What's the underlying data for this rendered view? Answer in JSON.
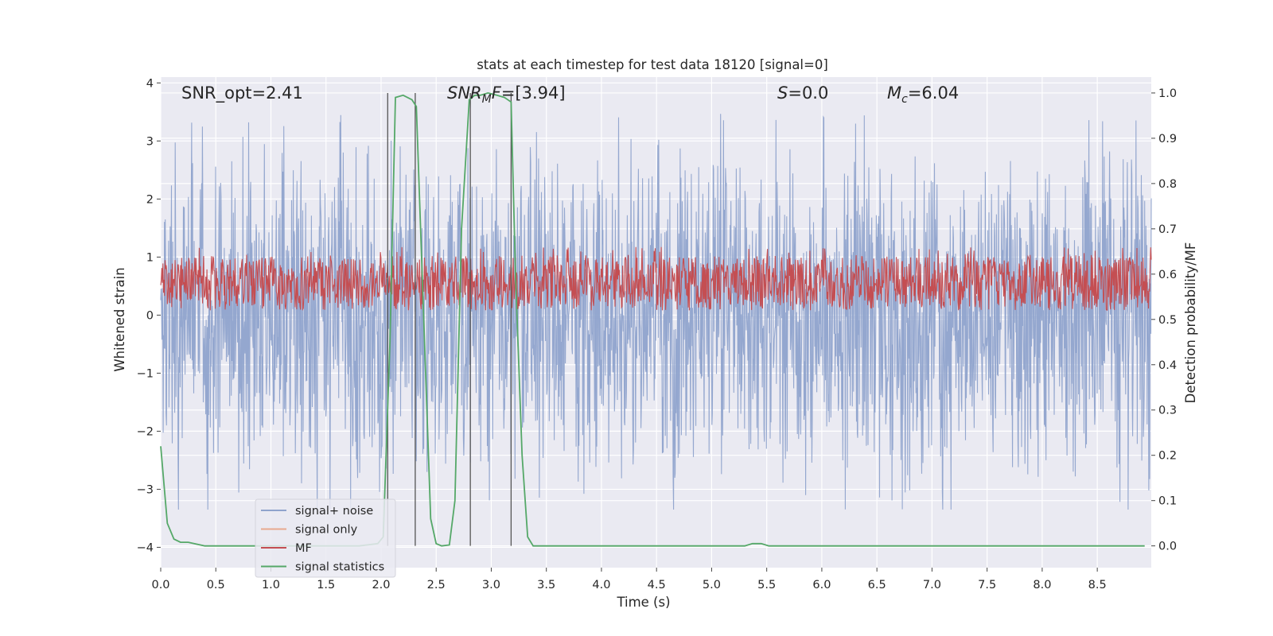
{
  "chart_data": {
    "type": "line",
    "title": "stats at each timestep for test data 18120 [signal=0]",
    "xlabel": "Time (s)",
    "ylabel": "Whitened strain",
    "ylabel_right": "Detection probability/MF",
    "xlim": [
      0.0,
      8.99
    ],
    "ylim": [
      -4.35,
      4.1
    ],
    "ylim_right": [
      -0.048,
      1.035
    ],
    "x_ticks": [
      "0.0",
      "0.5",
      "1.0",
      "1.5",
      "2.0",
      "2.5",
      "3.0",
      "3.5",
      "4.0",
      "4.5",
      "5.0",
      "5.5",
      "6.0",
      "6.5",
      "7.0",
      "7.5",
      "8.0",
      "8.5"
    ],
    "x_tick_values": [
      0.0,
      0.5,
      1.0,
      1.5,
      2.0,
      2.5,
      3.0,
      3.5,
      4.0,
      4.5,
      5.0,
      5.5,
      6.0,
      6.5,
      7.0,
      7.5,
      8.0,
      8.5
    ],
    "y_ticks": [
      "4",
      "3",
      "2",
      "1",
      "0",
      "−1",
      "−2",
      "−3",
      "−4"
    ],
    "y_tick_values": [
      4,
      3,
      2,
      1,
      0,
      -1,
      -2,
      -3,
      -4
    ],
    "y_right_ticks": [
      "1.0",
      "0.9",
      "0.8",
      "0.7",
      "0.6",
      "0.5",
      "0.4",
      "0.3",
      "0.2",
      "0.1",
      "0.0"
    ],
    "y_right_tick_values": [
      1.0,
      0.9,
      0.8,
      0.7,
      0.6,
      0.5,
      0.4,
      0.3,
      0.2,
      0.1,
      0.0
    ],
    "grid": true,
    "legend_position": "lower-left",
    "annotations": [
      {
        "prefix": "SNR_opt=2.41",
        "sub": "",
        "suffix": ""
      },
      {
        "prefix": "SNR",
        "sub": "M",
        "suffix": "F=[3.94]"
      },
      {
        "prefix": "S",
        "sub": "",
        "suffix": "=0.0"
      },
      {
        "prefix": "M",
        "sub": "c",
        "suffix": "=6.04"
      }
    ],
    "series": [
      {
        "name": "signal+ noise",
        "color": "#8fa3cc",
        "axis": "left",
        "style": "noise",
        "amplitude_range": [
          -3.35,
          3.6
        ]
      },
      {
        "name": "signal only",
        "color": "#e8a98f",
        "axis": "left",
        "values": []
      },
      {
        "name": "MF",
        "color": "#c44e52",
        "axis": "right",
        "style": "band",
        "range": [
          0.52,
          0.64
        ]
      },
      {
        "name": "signal statistics",
        "color": "#55a868",
        "axis": "right",
        "x": [
          0.0,
          0.06,
          0.12,
          0.18,
          0.25,
          0.4,
          0.6,
          0.9,
          1.2,
          1.5,
          1.8,
          1.97,
          2.02,
          2.08,
          2.13,
          2.2,
          2.28,
          2.32,
          2.38,
          2.45,
          2.5,
          2.55,
          2.62,
          2.67,
          2.73,
          2.8,
          2.85,
          2.9,
          2.97,
          3.05,
          3.12,
          3.18,
          3.22,
          3.28,
          3.33,
          3.38,
          3.45,
          3.6,
          4.0,
          5.0,
          5.3,
          5.37,
          5.45,
          5.52,
          5.6,
          6.0,
          7.0,
          8.0,
          8.93
        ],
        "values": [
          0.22,
          0.05,
          0.015,
          0.008,
          0.008,
          0.0,
          0.0,
          0.0,
          0.0,
          0.0,
          0.0,
          0.005,
          0.02,
          0.45,
          0.99,
          0.995,
          0.985,
          0.97,
          0.55,
          0.06,
          0.005,
          0.0,
          0.002,
          0.1,
          0.7,
          0.985,
          0.995,
          0.995,
          1.0,
          0.995,
          0.99,
          0.98,
          0.6,
          0.2,
          0.02,
          0.0,
          0.0,
          0.0,
          0.0,
          0.0,
          0.0,
          0.005,
          0.005,
          0.0,
          0.0,
          0.0,
          0.0,
          0.0,
          0.0
        ]
      },
      {
        "name": "",
        "color": "#555555",
        "axis": "left",
        "style": "vlines",
        "x": [
          2.06,
          2.31,
          2.81,
          3.18
        ]
      }
    ]
  }
}
